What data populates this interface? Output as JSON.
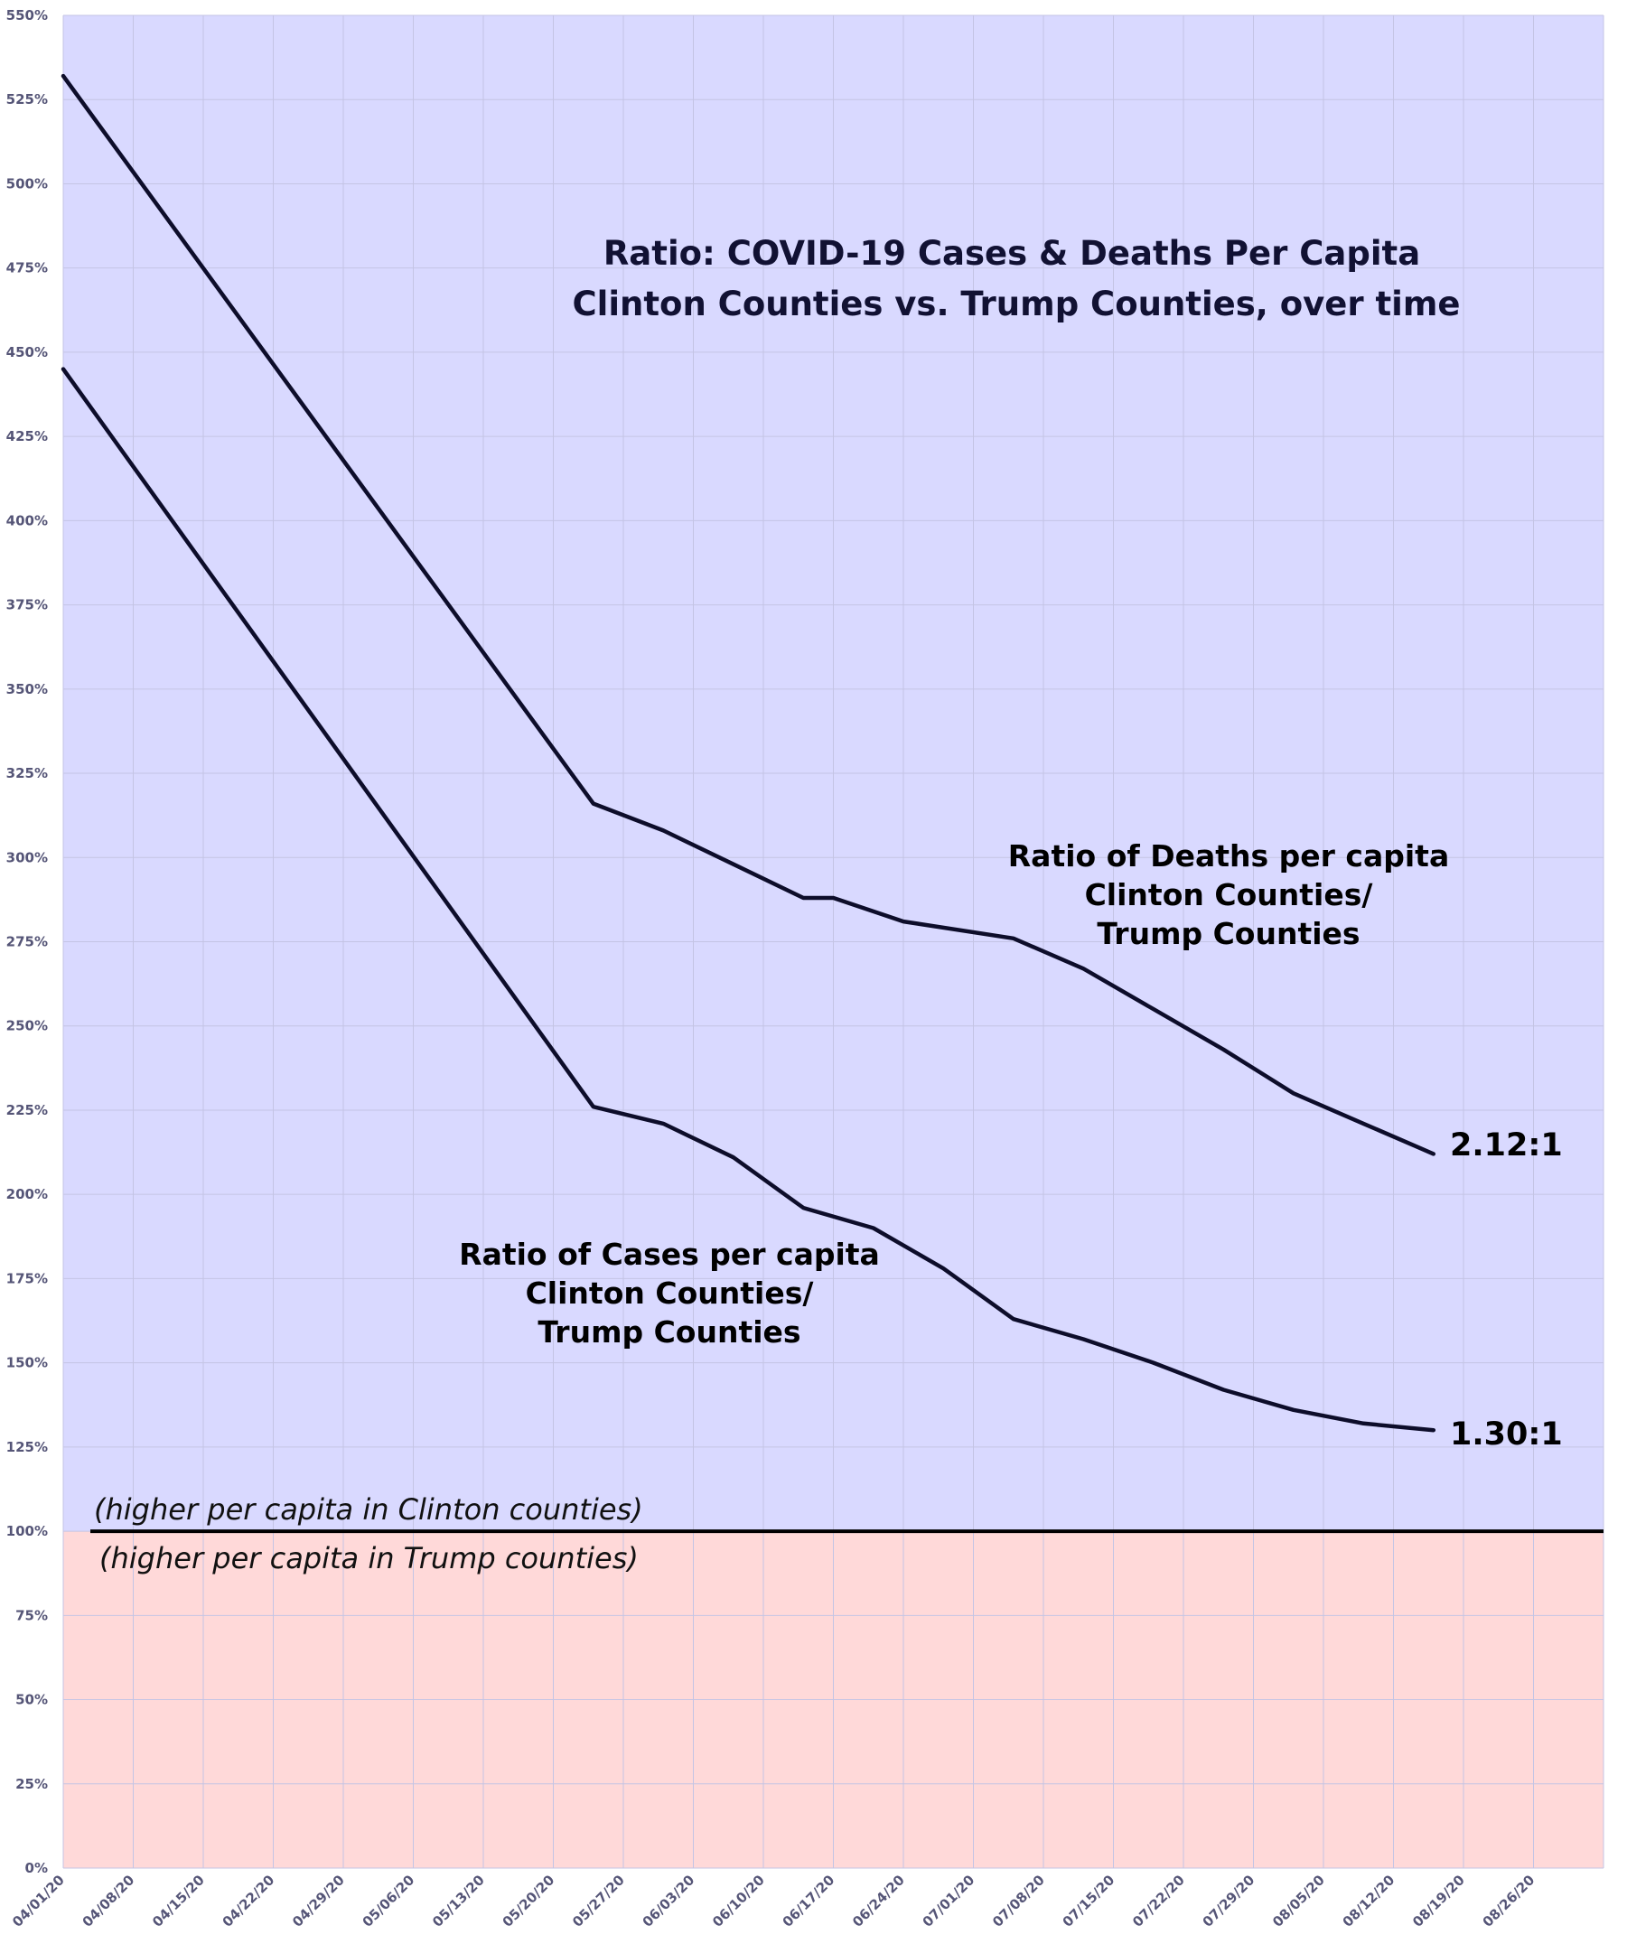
{
  "colors": {
    "upper_region": "#d9d9ff",
    "lower_region": "#ffd9d9",
    "grid": "#c4c4e4",
    "line": "#0d0d2a",
    "baseline": "#000000"
  },
  "chart_data": {
    "type": "line",
    "title_lines": [
      "Ratio: COVID-19 Cases & Deaths Per Capita",
      "Clinton Counties vs. Trump Counties, over time"
    ],
    "xlabel": "",
    "ylabel": "",
    "ylim": [
      0,
      550
    ],
    "y_ticks": [
      0,
      25,
      50,
      75,
      100,
      125,
      150,
      175,
      200,
      225,
      250,
      275,
      300,
      325,
      350,
      375,
      400,
      425,
      450,
      475,
      500,
      525,
      550
    ],
    "y_tick_labels": [
      "0%",
      "25%",
      "50%",
      "75%",
      "100%",
      "125%",
      "150%",
      "175%",
      "200%",
      "225%",
      "250%",
      "275%",
      "300%",
      "325%",
      "350%",
      "375%",
      "400%",
      "425%",
      "450%",
      "475%",
      "500%",
      "525%",
      "550%"
    ],
    "x_tick_labels": [
      "04/01/20",
      "04/08/20",
      "04/15/20",
      "04/22/20",
      "04/29/20",
      "05/06/20",
      "05/13/20",
      "05/20/20",
      "05/27/20",
      "06/03/20",
      "06/10/20",
      "06/17/20",
      "06/24/20",
      "07/01/20",
      "07/08/20",
      "07/15/20",
      "07/22/20",
      "07/29/20",
      "08/05/20",
      "08/12/20",
      "08/19/20",
      "08/26/20"
    ],
    "x_range": [
      "2020-04-01",
      "2020-09-02"
    ],
    "grid": true,
    "baseline_value": 100,
    "series": [
      {
        "name": "Ratio of Deaths per capita Clinton Counties/ Trump Counties",
        "label_lines": [
          "Ratio of Deaths per capita",
          "Clinton Counties/",
          "Trump Counties"
        ],
        "end_label": "2.12:1",
        "x": [
          "2020-04-01",
          "2020-05-24",
          "2020-05-31",
          "2020-06-07",
          "2020-06-14",
          "2020-06-17",
          "2020-06-24",
          "2020-07-05",
          "2020-07-12",
          "2020-07-19",
          "2020-07-26",
          "2020-08-02",
          "2020-08-09",
          "2020-08-16"
        ],
        "values": [
          532,
          316,
          308,
          298,
          288,
          288,
          281,
          276,
          267,
          255,
          243,
          230,
          221,
          212
        ]
      },
      {
        "name": "Ratio of Cases per capita Clinton Counties/ Trump Counties",
        "label_lines": [
          "Ratio of Cases per capita",
          "Clinton Counties/",
          "Trump Counties"
        ],
        "end_label": "1.30:1",
        "x": [
          "2020-04-01",
          "2020-05-24",
          "2020-05-31",
          "2020-06-07",
          "2020-06-14",
          "2020-06-21",
          "2020-06-28",
          "2020-07-05",
          "2020-07-12",
          "2020-07-19",
          "2020-07-26",
          "2020-08-02",
          "2020-08-09",
          "2020-08-16"
        ],
        "values": [
          445,
          226,
          221,
          211,
          196,
          190,
          178,
          163,
          157,
          150,
          142,
          136,
          132,
          130
        ]
      }
    ],
    "region_notes": {
      "above": "(higher per capita in Clinton counties)",
      "below": "(higher per capita in Trump counties)"
    }
  }
}
